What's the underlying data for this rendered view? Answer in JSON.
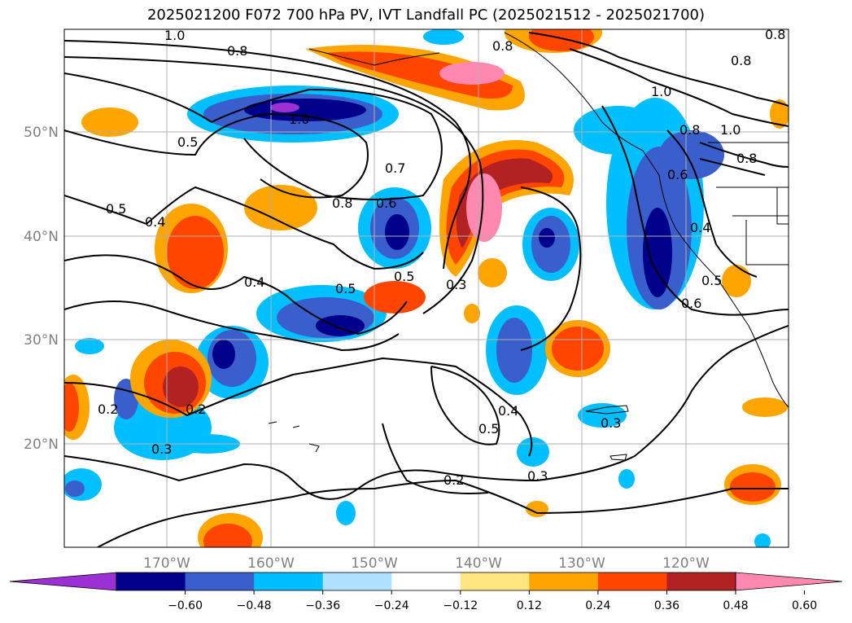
{
  "title": "2025021200 F072 700 hPa PV, IVT Landfall PC (2025021512 - 2025021700)",
  "map": {
    "lat_labels": [
      "50°N",
      "40°N",
      "30°N",
      "20°N"
    ],
    "lon_labels": [
      "170°W",
      "160°W",
      "150°W",
      "140°W",
      "130°W",
      "120°W"
    ],
    "gridlines": true
  },
  "contour_labels": [
    "1.0",
    "0.8",
    "0.5",
    "1.0",
    "0.7",
    "0.6",
    "0.8",
    "0.5",
    "0.4",
    "0.4",
    "0.5",
    "0.5",
    "0.3",
    "0.2",
    "0.2",
    "0.3",
    "0.4",
    "0.5",
    "0.3",
    "0.2",
    "0.3",
    "1.0",
    "0.8",
    "1.0",
    "0.8",
    "0.8",
    "0.6",
    "0.4",
    "0.5",
    "0.6",
    "0.8",
    "0.8"
  ],
  "colorbar": {
    "tick_labels": [
      "−0.60",
      "−0.48",
      "−0.36",
      "−0.24",
      "−0.12",
      "0.12",
      "0.24",
      "0.36",
      "0.48",
      "0.60"
    ],
    "colors": [
      "#9b30d4",
      "#00008b",
      "#3a5fcd",
      "#00bfff",
      "#b0e2ff",
      "#ffffff",
      "#ffe680",
      "#ffa500",
      "#ff4500",
      "#b22222",
      "#ff88b0"
    ]
  }
}
